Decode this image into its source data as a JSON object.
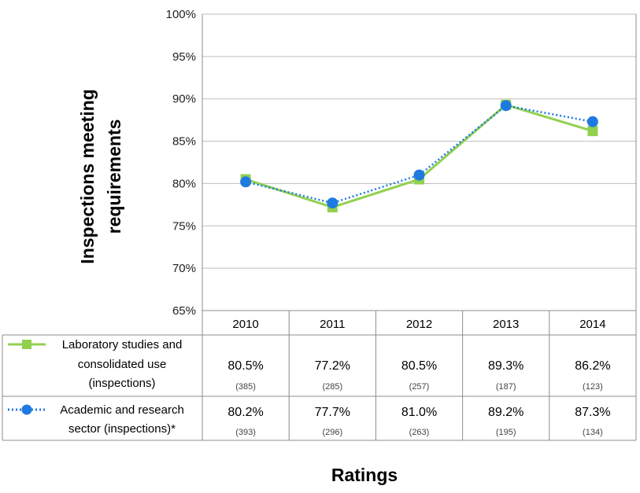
{
  "chart_data": {
    "type": "line",
    "ylabel_lines": [
      "Inspections meeting",
      "requirements"
    ],
    "xlabel": "Ratings",
    "ylim": [
      0.65,
      1.0
    ],
    "yticks": [
      "65%",
      "70%",
      "75%",
      "80%",
      "85%",
      "90%",
      "95%",
      "100%"
    ],
    "grid": true,
    "categories": [
      "2010",
      "2011",
      "2012",
      "2013",
      "2014"
    ],
    "series": [
      {
        "name_lines": [
          "Laboratory studies and",
          "consolidated use",
          "(inspections)"
        ],
        "color": "#92d050",
        "marker": "square",
        "line_style": "solid",
        "values": [
          0.805,
          0.772,
          0.805,
          0.893,
          0.862
        ],
        "value_labels": [
          "80.5%",
          "77.2%",
          "80.5%",
          "89.3%",
          "86.2%"
        ],
        "counts": [
          "(385)",
          "(285)",
          "(257)",
          "(187)",
          "(123)"
        ]
      },
      {
        "name_lines": [
          "Academic and research",
          "sector (inspections)*"
        ],
        "color": "#1f7ae0",
        "marker": "circle",
        "line_style": "dotted",
        "values": [
          0.802,
          0.777,
          0.81,
          0.892,
          0.873
        ],
        "value_labels": [
          "80.2%",
          "77.7%",
          "81.0%",
          "89.2%",
          "87.3%"
        ],
        "counts": [
          "(393)",
          "(296)",
          "(263)",
          "(195)",
          "(134)"
        ]
      }
    ]
  }
}
